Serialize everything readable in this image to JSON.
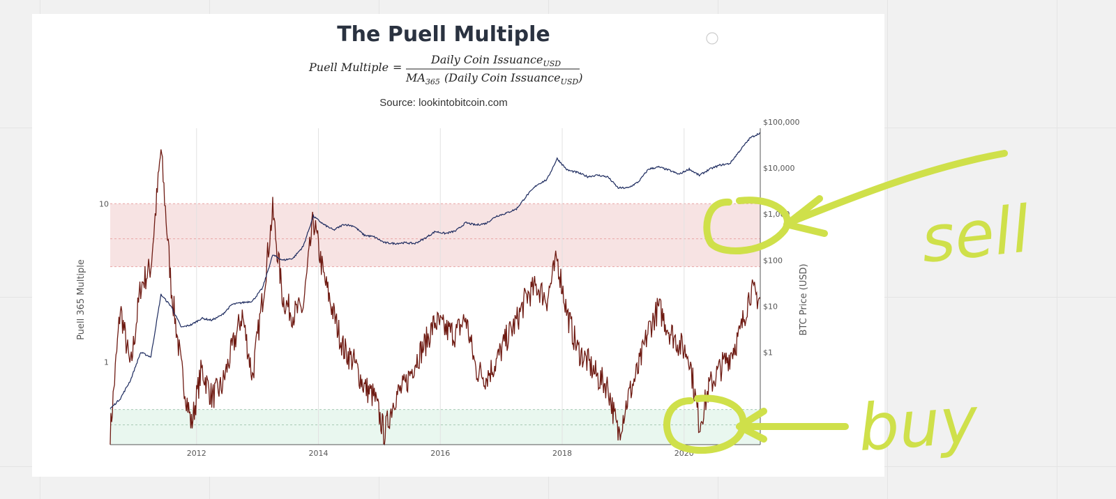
{
  "chart_data": {
    "type": "line",
    "title": "The Puell Multiple",
    "formula": {
      "lhs": "Puell Multiple",
      "equals": "=",
      "numerator": "Daily Coin Issuance",
      "numerator_sub": "USD",
      "denominator_prefix": "MA",
      "denominator_prefix_sub": "365",
      "denominator": "(Daily Coin Issuance",
      "denominator_sub": "USD",
      "denominator_close": ")"
    },
    "subtitle": "Source: lookintobitcoin.com",
    "xlabel": "",
    "ylabel": "Puell 365 Multiple",
    "y2label": "BTC Price (USD)",
    "x_ticks": [
      "2012",
      "2014",
      "2016",
      "2018",
      "2020"
    ],
    "x_range": [
      "2010-08",
      "2021-04"
    ],
    "y_scale": "log",
    "y_range": [
      0.3,
      30
    ],
    "y_ticks": [
      {
        "value": 10,
        "label": "10"
      },
      {
        "value": 1,
        "label": "1"
      }
    ],
    "y2_scale": "log",
    "y2_range": [
      0.01,
      100000
    ],
    "y2_ticks": [
      {
        "value": 100000,
        "label": "$100,000"
      },
      {
        "value": 10000,
        "label": "$10,000"
      },
      {
        "value": 1000,
        "label": "$1,000"
      },
      {
        "value": 100,
        "label": "$100"
      },
      {
        "value": 10,
        "label": "$10"
      },
      {
        "value": 1,
        "label": "$1"
      }
    ],
    "bands": [
      {
        "name": "sell-zone",
        "from": 4.0,
        "to": 10.0,
        "mid": 6.0,
        "color": "#f7e3e3",
        "line_color": "#e8a5a5"
      },
      {
        "name": "buy-zone",
        "from": 0.3,
        "to": 0.5,
        "mid": 0.4,
        "color": "#e9f7ef",
        "line_color": "#a8c9b4"
      }
    ],
    "grid": true,
    "series": [
      {
        "name": "",
        "axis": "y",
        "color": "#6e1a12",
        "x": [
          "2010-08",
          "2010-10",
          "2010-12",
          "2011-02",
          "2011-04",
          "2011-06",
          "2011-08",
          "2011-10",
          "2011-12",
          "2012-02",
          "2012-04",
          "2012-06",
          "2012-08",
          "2012-10",
          "2012-12",
          "2013-02",
          "2013-04",
          "2013-06",
          "2013-08",
          "2013-10",
          "2013-12",
          "2014-02",
          "2014-04",
          "2014-06",
          "2014-08",
          "2014-10",
          "2014-12",
          "2015-02",
          "2015-04",
          "2015-06",
          "2015-08",
          "2015-10",
          "2015-12",
          "2016-02",
          "2016-04",
          "2016-06",
          "2016-08",
          "2016-10",
          "2016-12",
          "2017-02",
          "2017-04",
          "2017-06",
          "2017-08",
          "2017-10",
          "2017-12",
          "2018-02",
          "2018-04",
          "2018-06",
          "2018-08",
          "2018-10",
          "2018-12",
          "2019-02",
          "2019-04",
          "2019-06",
          "2019-08",
          "2019-10",
          "2019-12",
          "2020-02",
          "2020-04",
          "2020-06",
          "2020-08",
          "2020-10",
          "2020-12",
          "2021-02",
          "2021-04"
        ],
        "y": [
          0.35,
          2.2,
          0.9,
          3.0,
          4.0,
          22.0,
          3.0,
          0.9,
          0.4,
          0.9,
          0.6,
          0.7,
          1.2,
          2.0,
          0.8,
          2.5,
          9.0,
          2.5,
          2.0,
          2.2,
          8.0,
          3.5,
          2.0,
          1.2,
          1.0,
          0.7,
          0.6,
          0.35,
          0.6,
          0.7,
          1.0,
          1.3,
          1.8,
          1.6,
          1.5,
          1.9,
          0.9,
          0.8,
          1.0,
          1.4,
          1.8,
          2.6,
          3.0,
          2.5,
          4.5,
          2.0,
          1.2,
          1.0,
          0.8,
          0.7,
          0.35,
          0.6,
          0.9,
          1.6,
          2.2,
          1.6,
          1.3,
          1.1,
          0.4,
          0.7,
          0.9,
          1.1,
          1.5,
          2.8,
          2.5
        ]
      },
      {
        "name": "",
        "axis": "y2",
        "color": "#1c2a5e",
        "x": [
          "2010-08",
          "2010-10",
          "2010-12",
          "2011-02",
          "2011-04",
          "2011-06",
          "2011-08",
          "2011-10",
          "2011-12",
          "2012-02",
          "2012-04",
          "2012-06",
          "2012-08",
          "2012-10",
          "2012-12",
          "2013-02",
          "2013-04",
          "2013-06",
          "2013-08",
          "2013-10",
          "2013-12",
          "2014-02",
          "2014-04",
          "2014-06",
          "2014-08",
          "2014-10",
          "2014-12",
          "2015-02",
          "2015-04",
          "2015-06",
          "2015-08",
          "2015-10",
          "2015-12",
          "2016-02",
          "2016-04",
          "2016-06",
          "2016-08",
          "2016-10",
          "2016-12",
          "2017-02",
          "2017-04",
          "2017-06",
          "2017-08",
          "2017-10",
          "2017-12",
          "2018-02",
          "2018-04",
          "2018-06",
          "2018-08",
          "2018-10",
          "2018-12",
          "2019-02",
          "2019-04",
          "2019-06",
          "2019-08",
          "2019-10",
          "2019-12",
          "2020-02",
          "2020-04",
          "2020-06",
          "2020-08",
          "2020-10",
          "2020-12",
          "2021-02",
          "2021-04"
        ],
        "y": [
          0.06,
          0.1,
          0.25,
          1.0,
          0.8,
          18,
          10,
          3.5,
          4.0,
          5.5,
          5.0,
          6.5,
          11,
          12,
          13,
          25,
          130,
          100,
          110,
          200,
          900,
          600,
          450,
          600,
          550,
          350,
          320,
          240,
          230,
          240,
          230,
          300,
          420,
          380,
          430,
          650,
          580,
          630,
          900,
          1050,
          1300,
          2500,
          4300,
          5600,
          16000,
          9000,
          8000,
          6500,
          7000,
          6400,
          3700,
          3700,
          5000,
          9500,
          10500,
          9000,
          7300,
          9500,
          6900,
          9400,
          11500,
          12500,
          24000,
          45000,
          58000
        ]
      }
    ]
  },
  "annotations": {
    "sell_label": "sell",
    "buy_label": "buy",
    "color": "#cfe04a"
  },
  "window_controls": {
    "icon": "circle-icon"
  }
}
